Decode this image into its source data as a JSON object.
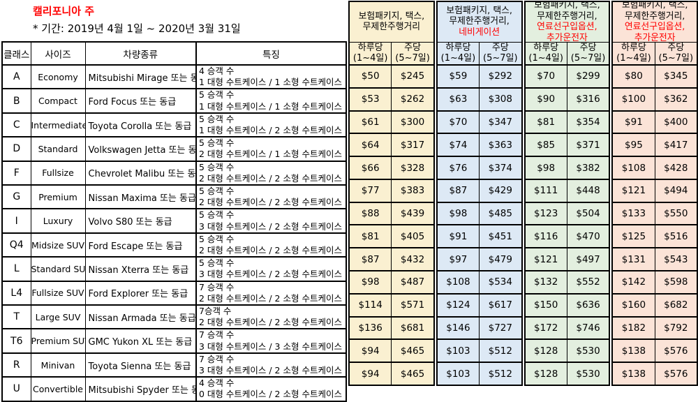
{
  "header": {
    "title": "캘리포니아 주",
    "period": "* 기간: 2019년 4월 1일 ~ 2020년 3월 31일"
  },
  "columns": {
    "class": "클래스",
    "size": "사이즈",
    "vehicle": "차량종류",
    "features": "특징"
  },
  "subheader": {
    "daily_label": "하루당",
    "daily_range": "(1~4일)",
    "weekly_label": "주당",
    "weekly_range": "(5~7일)"
  },
  "colors": {
    "red_text": "#ff0000",
    "border": "#000000",
    "group1_bg": "#faf0d1",
    "group2_bg": "#dde9f5",
    "group3_bg": "#e3efdf",
    "group4_bg": "#fbe3d7"
  },
  "price_groups": [
    {
      "name": "insurance-tax-unlimited",
      "bg": "#faf0d1",
      "lines": [
        {
          "text": "보험패키지, 택스,",
          "red": false
        },
        {
          "text": "무제한주행거리",
          "red": false
        }
      ]
    },
    {
      "name": "insurance-tax-unlimited-navigation",
      "bg": "#dde9f5",
      "lines": [
        {
          "text": "보험패키지, 택스,",
          "red": false
        },
        {
          "text": "무제한주행거리,",
          "red": false
        },
        {
          "text": "네비게이션",
          "red": true
        }
      ]
    },
    {
      "name": "insurance-tax-unlimited-fuel-driver",
      "bg": "#e3efdf",
      "lines": [
        {
          "text": "보험패키지, 택스,",
          "red": false
        },
        {
          "text": "무제한주행거리,",
          "red": false
        },
        {
          "text": "연료선구입옵션,",
          "red": true
        },
        {
          "text": "추가운전자",
          "red": true
        }
      ]
    },
    {
      "name": "insurance-tax-unlimited-fuel-driver-2",
      "bg": "#fbe3d7",
      "lines": [
        {
          "text": "보험패키지, 택스,",
          "red": false
        },
        {
          "text": "무제한주행거리,",
          "red": false
        },
        {
          "text": "연료선구입옵션,",
          "red": true
        },
        {
          "text": "추가운전자",
          "red": true
        }
      ]
    }
  ],
  "rows": [
    {
      "class": "A",
      "size": "Economy",
      "vehicle": "Mitsubishi Mirage 또는 동급",
      "feature_passengers": "4 승객 수",
      "feature_luggage": "1 대형 수트케이스 / 1 소형 수트케이스",
      "prices": [
        [
          "$50",
          "$245"
        ],
        [
          "$59",
          "$292"
        ],
        [
          "$70",
          "$299"
        ],
        [
          "$80",
          "$345"
        ]
      ]
    },
    {
      "class": "B",
      "size": "Compact",
      "vehicle": "Ford Focus 또는 동급",
      "feature_passengers": "5 승객 수",
      "feature_luggage": "1 대형 수트케이스 / 1 소형 수트케이스",
      "prices": [
        [
          "$53",
          "$262"
        ],
        [
          "$63",
          "$308"
        ],
        [
          "$90",
          "$316"
        ],
        [
          "$100",
          "$362"
        ]
      ]
    },
    {
      "class": "C",
      "size": "Intermediate",
      "vehicle": "Toyota Corolla 또는 동급",
      "feature_passengers": "5 승객 수",
      "feature_luggage": "1 대형 수트케이스 / 2 소형 수트케이스",
      "prices": [
        [
          "$61",
          "$300"
        ],
        [
          "$70",
          "$347"
        ],
        [
          "$81",
          "$354"
        ],
        [
          "$91",
          "$400"
        ]
      ]
    },
    {
      "class": "D",
      "size": "Standard",
      "vehicle": "Volkswagen Jetta 또는 동급",
      "feature_passengers": "5 승객 수",
      "feature_luggage": "2 대형 수트케이스 / 1 소형 수트케이스",
      "prices": [
        [
          "$64",
          "$317"
        ],
        [
          "$74",
          "$363"
        ],
        [
          "$85",
          "$371"
        ],
        [
          "$95",
          "$417"
        ]
      ]
    },
    {
      "class": "F",
      "size": "Fullsize",
      "vehicle": "Chevrolet Malibu 또는 동급",
      "feature_passengers": "5 승객 수",
      "feature_luggage": "2 대형 수트케이스 / 2 소형 수트케이스",
      "prices": [
        [
          "$66",
          "$328"
        ],
        [
          "$76",
          "$374"
        ],
        [
          "$98",
          "$382"
        ],
        [
          "$108",
          "$428"
        ]
      ]
    },
    {
      "class": "G",
      "size": "Premium",
      "vehicle": "Nissan Maxima 또는 동급",
      "feature_passengers": "5 승객 수",
      "feature_luggage": "2 대형 수트케이스 / 2 소형 수트케이스",
      "prices": [
        [
          "$77",
          "$383"
        ],
        [
          "$87",
          "$429"
        ],
        [
          "$111",
          "$448"
        ],
        [
          "$121",
          "$494"
        ]
      ]
    },
    {
      "class": "I",
      "size": "Luxury",
      "vehicle": "Volvo S80 또는 동급",
      "feature_passengers": "5 승객 수",
      "feature_luggage": "3 대형 수트케이스 / 2 소형 수트케이스",
      "prices": [
        [
          "$88",
          "$439"
        ],
        [
          "$98",
          "$485"
        ],
        [
          "$123",
          "$504"
        ],
        [
          "$133",
          "$550"
        ]
      ]
    },
    {
      "class": "Q4",
      "size": "Midsize SUV",
      "vehicle": "Ford Escape 또는 동급",
      "feature_passengers": "5 승객 수",
      "feature_luggage": "2 대형 수트케이스 / 2 소형 수트케이스",
      "prices": [
        [
          "$81",
          "$405"
        ],
        [
          "$91",
          "$451"
        ],
        [
          "$116",
          "$470"
        ],
        [
          "$125",
          "$516"
        ]
      ]
    },
    {
      "class": "L",
      "size": "Standard SUV",
      "vehicle": "Nissan Xterra 또는 동급",
      "feature_passengers": "5 승객 수",
      "feature_luggage": "3 대형 수트케이스 / 2 소형 수트케이스",
      "prices": [
        [
          "$87",
          "$432"
        ],
        [
          "$97",
          "$479"
        ],
        [
          "$121",
          "$497"
        ],
        [
          "$131",
          "$543"
        ]
      ]
    },
    {
      "class": "L4",
      "size": "Fullsize SUV",
      "vehicle": "Ford Explorer 또는 동급",
      "feature_passengers": "7 승객 수",
      "feature_luggage": "2 대형 수트케이스 / 2 소형 수트케이스",
      "prices": [
        [
          "$98",
          "$487"
        ],
        [
          "$108",
          "$534"
        ],
        [
          "$132",
          "$552"
        ],
        [
          "$142",
          "$598"
        ]
      ]
    },
    {
      "class": "T",
      "size": "Large SUV",
      "vehicle": "Nissan Armada 또는 동급",
      "feature_passengers": "7승객 수",
      "feature_luggage": "2 대형 수트케이스 / 2 소형 수트케이스",
      "prices": [
        [
          "$114",
          "$571"
        ],
        [
          "$124",
          "$617"
        ],
        [
          "$150",
          "$636"
        ],
        [
          "$160",
          "$682"
        ]
      ]
    },
    {
      "class": "T6",
      "size": "Premium SUV",
      "vehicle": "GMC Yukon XL 또는 동급",
      "feature_passengers": "7 승객 수",
      "feature_luggage": "3 대형 수트케이스 / 3 소형 수트케이스",
      "prices": [
        [
          "$136",
          "$681"
        ],
        [
          "$146",
          "$727"
        ],
        [
          "$172",
          "$746"
        ],
        [
          "$182",
          "$792"
        ]
      ]
    },
    {
      "class": "R",
      "size": "Minivan",
      "vehicle": "Toyota Sienna 또는 동급",
      "feature_passengers": "7 승객 수",
      "feature_luggage": "3 대형 수트케이스 / 2 소형 수트케이스",
      "prices": [
        [
          "$94",
          "$465"
        ],
        [
          "$103",
          "$512"
        ],
        [
          "$128",
          "$530"
        ],
        [
          "$138",
          "$576"
        ]
      ]
    },
    {
      "class": "U",
      "size": "Convertible",
      "vehicle": "Mitsubishi Spyder 또는 동급",
      "feature_passengers": "4 승객 수",
      "feature_luggage": "0 대형 수트케이스 / 2 소형 수트케이스",
      "prices": [
        [
          "$94",
          "$465"
        ],
        [
          "$103",
          "$512"
        ],
        [
          "$128",
          "$530"
        ],
        [
          "$138",
          "$576"
        ]
      ]
    }
  ]
}
